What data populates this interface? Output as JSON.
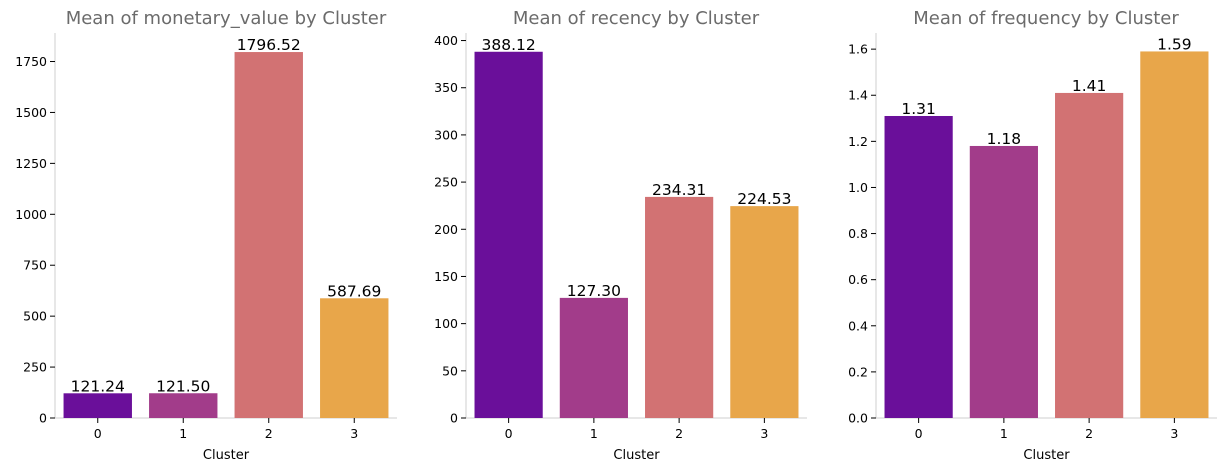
{
  "chart_data": [
    {
      "type": "bar",
      "title": "Mean of monetary_value by Cluster",
      "xlabel": "Cluster",
      "ylabel": "",
      "categories": [
        "0",
        "1",
        "2",
        "3"
      ],
      "values": [
        121.24,
        121.5,
        1796.52,
        587.69
      ],
      "value_labels": [
        "121.24",
        "121.50",
        "1796.52",
        "587.69"
      ],
      "ylim": [
        0,
        1890
      ],
      "yticks": [
        0,
        250,
        500,
        750,
        1000,
        1250,
        1500,
        1750
      ],
      "ytick_labels": [
        "0",
        "250",
        "500",
        "750",
        "1000",
        "1250",
        "1500",
        "1750"
      ],
      "colors": [
        "#6a0f9a",
        "#a23c8a",
        "#d27273",
        "#e8a64a"
      ],
      "grid": false
    },
    {
      "type": "bar",
      "title": "Mean of recency by Cluster",
      "xlabel": "Cluster",
      "ylabel": "",
      "categories": [
        "0",
        "1",
        "2",
        "3"
      ],
      "values": [
        388.12,
        127.3,
        234.31,
        224.53
      ],
      "value_labels": [
        "388.12",
        "127.30",
        "234.31",
        "224.53"
      ],
      "ylim": [
        0,
        408
      ],
      "yticks": [
        0,
        50,
        100,
        150,
        200,
        250,
        300,
        350,
        400
      ],
      "ytick_labels": [
        "0",
        "50",
        "100",
        "150",
        "200",
        "250",
        "300",
        "350",
        "400"
      ],
      "colors": [
        "#6a0f9a",
        "#a23c8a",
        "#d27273",
        "#e8a64a"
      ],
      "grid": false
    },
    {
      "type": "bar",
      "title": "Mean of frequency by Cluster",
      "xlabel": "Cluster",
      "ylabel": "",
      "categories": [
        "0",
        "1",
        "2",
        "3"
      ],
      "values": [
        1.31,
        1.18,
        1.41,
        1.59
      ],
      "value_labels": [
        "1.31",
        "1.18",
        "1.41",
        "1.59"
      ],
      "ylim": [
        0,
        1.67
      ],
      "yticks": [
        0.0,
        0.2,
        0.4,
        0.6,
        0.8,
        1.0,
        1.2,
        1.4,
        1.6
      ],
      "ytick_labels": [
        "0.0",
        "0.2",
        "0.4",
        "0.6",
        "0.8",
        "1.0",
        "1.2",
        "1.4",
        "1.6"
      ],
      "colors": [
        "#6a0f9a",
        "#a23c8a",
        "#d27273",
        "#e8a64a"
      ],
      "grid": false
    }
  ]
}
